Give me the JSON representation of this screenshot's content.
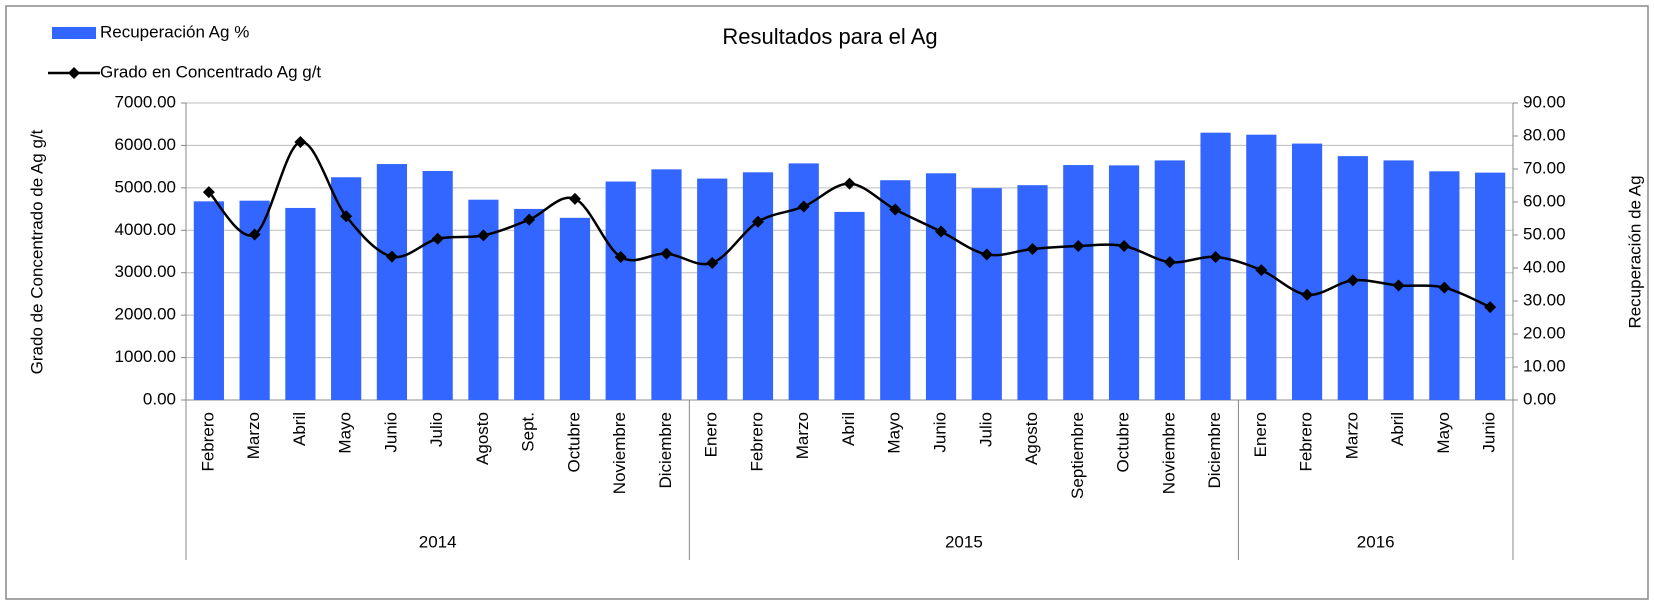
{
  "chart_data": {
    "type": "bar",
    "title": "Resultados para el Ag",
    "y_label": "Grado de Concentrado de Ag g/t",
    "y2_label": "Recuperación de Ag",
    "category_groups": [
      {
        "name": "2014",
        "categories": [
          "Febrero",
          "Marzo",
          "Abril",
          "Mayo",
          "Junio",
          "Julio",
          "Agosto",
          "Sept.",
          "Octubre",
          "Noviembre",
          "Diciembre"
        ]
      },
      {
        "name": "2015",
        "categories": [
          "Enero",
          "Febrero",
          "Marzo",
          "Abril",
          "Mayo",
          "Junio",
          "Julio",
          "Agosto",
          "Septiembre",
          "Octubre",
          "Noviembre",
          "Diciembre"
        ]
      },
      {
        "name": "2016",
        "categories": [
          "Enero",
          "Febrero",
          "Marzo",
          "Abril",
          "Mayo",
          "Junio"
        ]
      }
    ],
    "series": [
      {
        "name": "Recuperación Ag %",
        "type": "bar",
        "axis": "y2",
        "color": "#3366ff",
        "values": [
          60.2,
          60.4,
          58.2,
          67.5,
          71.5,
          69.4,
          60.7,
          57.9,
          55.2,
          66.2,
          69.9,
          67.1,
          69.0,
          71.7,
          57.0,
          66.6,
          68.7,
          64.2,
          65.1,
          71.2,
          71.1,
          72.6,
          81.0,
          80.4,
          77.7,
          73.9,
          72.6,
          69.3,
          68.9
        ]
      },
      {
        "name": "Grado en Concentrado Ag g/t",
        "type": "line",
        "axis": "y",
        "color": "#000000",
        "values": [
          4900,
          3900,
          6080,
          4330,
          3380,
          3800,
          3880,
          4250,
          4740,
          3370,
          3450,
          3230,
          4200,
          4560,
          5100,
          4490,
          3970,
          3430,
          3560,
          3630,
          3630,
          3250,
          3370,
          3060,
          2480,
          2820,
          2700,
          2650,
          2190
        ]
      }
    ],
    "ylim": [
      0,
      7000
    ],
    "yticks": [
      {
        "value": 0,
        "label": "0.00"
      },
      {
        "value": 1000,
        "label": "1000.00"
      },
      {
        "value": 2000,
        "label": "2000.00"
      },
      {
        "value": 3000,
        "label": "3000.00"
      },
      {
        "value": 4000,
        "label": "4000.00"
      },
      {
        "value": 5000,
        "label": "5000.00"
      },
      {
        "value": 6000,
        "label": "6000.00"
      },
      {
        "value": 7000,
        "label": "7000.00"
      }
    ],
    "y2lim": [
      0,
      90
    ],
    "y2ticks": [
      {
        "value": 0,
        "label": "0.00"
      },
      {
        "value": 10,
        "label": "10.00"
      },
      {
        "value": 20,
        "label": "20.00"
      },
      {
        "value": 30,
        "label": "30.00"
      },
      {
        "value": 40,
        "label": "40.00"
      },
      {
        "value": 50,
        "label": "50.00"
      },
      {
        "value": 60,
        "label": "60.00"
      },
      {
        "value": 70,
        "label": "70.00"
      },
      {
        "value": 80,
        "label": "80.00"
      },
      {
        "value": 90,
        "label": "90.00"
      }
    ],
    "grid": true
  }
}
